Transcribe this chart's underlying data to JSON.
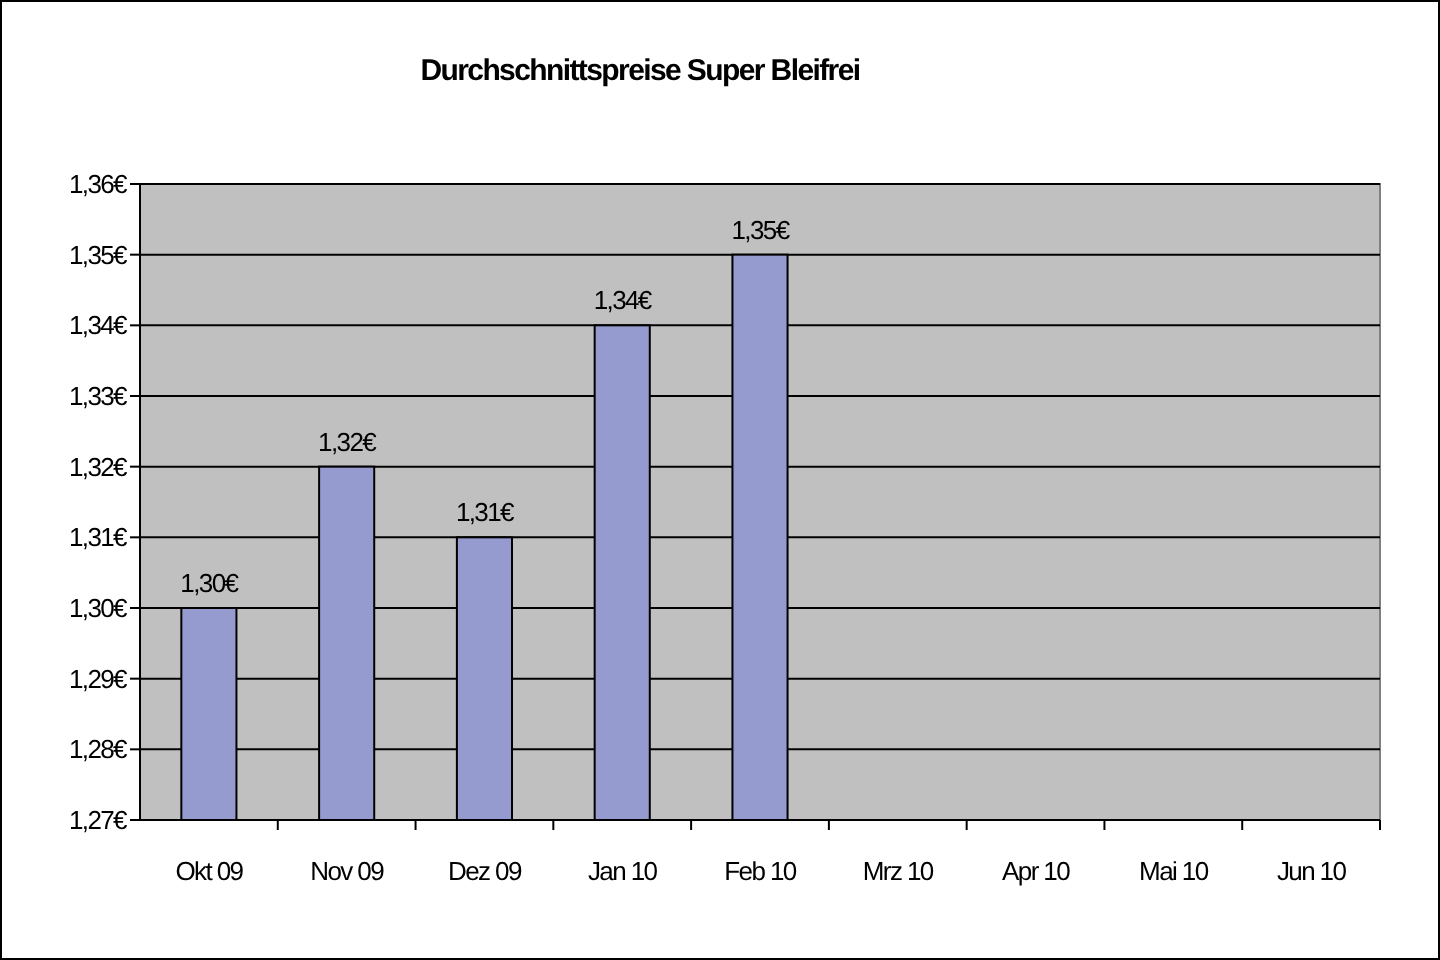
{
  "chart_data": {
    "type": "bar",
    "title": "Durchschnittspreise Super Bleifrei",
    "categories": [
      "Okt 09",
      "Nov 09",
      "Dez 09",
      "Jan 10",
      "Feb 10",
      "Mrz 10",
      "Apr 10",
      "Mai 10",
      "Jun 10"
    ],
    "values": [
      1.3,
      1.32,
      1.31,
      1.34,
      1.35,
      null,
      null,
      null,
      null
    ],
    "value_labels": [
      "1,30€",
      "1,32€",
      "1,31€",
      "1,34€",
      "1,35€",
      null,
      null,
      null,
      null
    ],
    "color": "#959bce",
    "ylim": [
      1.27,
      1.36
    ],
    "yticks": [
      {
        "value": 1.27,
        "label": "1,27€"
      },
      {
        "value": 1.28,
        "label": "1,28€"
      },
      {
        "value": 1.29,
        "label": "1,29€"
      },
      {
        "value": 1.3,
        "label": "1,30€"
      },
      {
        "value": 1.31,
        "label": "1,31€"
      },
      {
        "value": 1.32,
        "label": "1,32€"
      },
      {
        "value": 1.33,
        "label": "1,33€"
      },
      {
        "value": 1.34,
        "label": "1,34€"
      },
      {
        "value": 1.35,
        "label": "1,35€"
      },
      {
        "value": 1.36,
        "label": "1,36€"
      }
    ],
    "grid": "y"
  }
}
